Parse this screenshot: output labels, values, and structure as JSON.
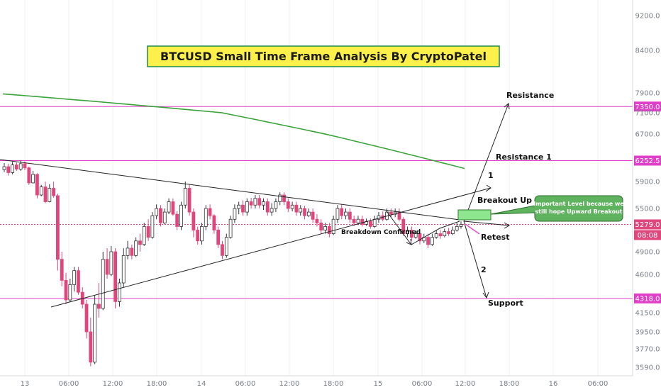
{
  "chart_data": {
    "type": "candlestick",
    "title": "BTCUSD Small Time Frame Analysis By CryptoPatel",
    "y_ticks": [
      9200.0,
      8400.0,
      7900.0,
      7350.0,
      7100.0,
      6700.0,
      6252.5,
      5900.0,
      5500.0,
      5279.0,
      4900.0,
      4600.0,
      4318.0,
      4150.0,
      3950.0,
      3770.0,
      3590.0
    ],
    "x_ticks": [
      "13",
      "06:00",
      "12:00",
      "18:00",
      "14",
      "06:00",
      "12:00",
      "18:00",
      "15",
      "06:00",
      "12:00",
      "18:00",
      "16",
      "06:00"
    ],
    "ylim": [
      3500,
      9600
    ],
    "levels": [
      {
        "label": "7350.0",
        "value": 7350.0
      },
      {
        "label": "6252.5",
        "value": 6252.5
      },
      {
        "label": "4318.0",
        "value": 4318.0
      }
    ],
    "current_price": {
      "label": "5279.0",
      "value": 5279.0
    },
    "countdown": "08:08",
    "moving_average": {
      "start": 7860,
      "end": 6120
    },
    "annotations": {
      "resistance": "Resistance",
      "resistance1": "Resistance 1",
      "breakout_up": "Breakout Up",
      "path1": "1",
      "path2": "2",
      "retest": "Retest",
      "support": "Support",
      "breakdown": "Breakdown Confirmed",
      "callout_line1": "Important Level because we",
      "callout_line2": "still hope Upward Breakout"
    },
    "candles": [
      [
        6100,
        6150,
        6060,
        6210
      ],
      [
        6150,
        6050,
        6000,
        6200
      ],
      [
        6050,
        6180,
        6020,
        6230
      ],
      [
        6180,
        6110,
        6080,
        6220
      ],
      [
        6110,
        6200,
        6080,
        6250
      ],
      [
        6200,
        6130,
        6090,
        6240
      ],
      [
        6130,
        5880,
        5850,
        6150
      ],
      [
        5880,
        6020,
        5870,
        6080
      ],
      [
        6020,
        5700,
        5650,
        6040
      ],
      [
        5700,
        5820,
        5680,
        5850
      ],
      [
        5820,
        5600,
        5580,
        5900
      ],
      [
        5600,
        5800,
        5590,
        5860
      ],
      [
        5800,
        5690,
        5660,
        5900
      ],
      [
        5690,
        4800,
        4650,
        5720
      ],
      [
        4800,
        4530,
        4460,
        4900
      ],
      [
        4530,
        4300,
        4250,
        4620
      ],
      [
        4300,
        4480,
        4280,
        4550
      ],
      [
        4480,
        4650,
        4400,
        4700
      ],
      [
        4650,
        4390,
        4360,
        4700
      ],
      [
        4390,
        4250,
        4200,
        4450
      ],
      [
        4250,
        3950,
        3880,
        4300
      ],
      [
        3950,
        3640,
        3600,
        4100
      ],
      [
        3640,
        4250,
        3620,
        4350
      ],
      [
        4250,
        4200,
        4100,
        4500
      ],
      [
        4200,
        4800,
        4180,
        4900
      ],
      [
        4800,
        4600,
        4550,
        4950
      ],
      [
        4600,
        4900,
        4580,
        4980
      ],
      [
        4900,
        4280,
        4200,
        4950
      ],
      [
        4280,
        4500,
        4220,
        4550
      ],
      [
        4500,
        4850,
        4450,
        4950
      ],
      [
        4850,
        4950,
        4800,
        5050
      ],
      [
        4950,
        4850,
        4800,
        5000
      ],
      [
        4850,
        5050,
        4830,
        5100
      ],
      [
        5050,
        5000,
        4900,
        5150
      ],
      [
        5000,
        5250,
        4980,
        5300
      ],
      [
        5250,
        5100,
        5050,
        5350
      ],
      [
        5100,
        5400,
        5080,
        5450
      ],
      [
        5400,
        5500,
        5350,
        5560
      ],
      [
        5500,
        5300,
        5250,
        5550
      ],
      [
        5300,
        5450,
        5280,
        5500
      ],
      [
        5450,
        5600,
        5420,
        5650
      ],
      [
        5600,
        5420,
        5400,
        5650
      ],
      [
        5420,
        5250,
        5200,
        5460
      ],
      [
        5250,
        5550,
        5200,
        5600
      ],
      [
        5550,
        5800,
        5500,
        5900
      ],
      [
        5800,
        5450,
        5400,
        5850
      ],
      [
        5450,
        5200,
        5100,
        5500
      ],
      [
        5200,
        5050,
        5000,
        5250
      ],
      [
        5050,
        5250,
        5000,
        5300
      ],
      [
        5250,
        5500,
        5200,
        5550
      ],
      [
        5500,
        5400,
        5350,
        5560
      ],
      [
        5400,
        5200,
        5150,
        5420
      ],
      [
        5200,
        5000,
        4950,
        5250
      ],
      [
        5000,
        4850,
        4800,
        5050
      ],
      [
        4850,
        5100,
        4820,
        5150
      ],
      [
        5100,
        5350,
        5080,
        5400
      ],
      [
        5350,
        5500,
        5300,
        5560
      ],
      [
        5500,
        5550,
        5420,
        5600
      ],
      [
        5550,
        5450,
        5400,
        5620
      ],
      [
        5450,
        5600,
        5400,
        5650
      ],
      [
        5600,
        5550,
        5500,
        5660
      ],
      [
        5550,
        5650,
        5500,
        5700
      ],
      [
        5650,
        5550,
        5500,
        5700
      ],
      [
        5550,
        5600,
        5480,
        5650
      ],
      [
        5600,
        5450,
        5400,
        5650
      ],
      [
        5450,
        5500,
        5400,
        5580
      ],
      [
        5500,
        5600,
        5450,
        5650
      ],
      [
        5600,
        5700,
        5550,
        5740
      ],
      [
        5700,
        5600,
        5550,
        5740
      ],
      [
        5600,
        5500,
        5450,
        5650
      ],
      [
        5500,
        5550,
        5460,
        5600
      ],
      [
        5550,
        5450,
        5400,
        5600
      ],
      [
        5450,
        5500,
        5400,
        5550
      ],
      [
        5500,
        5400,
        5350,
        5540
      ],
      [
        5400,
        5450,
        5380,
        5500
      ],
      [
        5450,
        5350,
        5300,
        5500
      ],
      [
        5350,
        5300,
        5250,
        5420
      ],
      [
        5300,
        5200,
        5150,
        5350
      ],
      [
        5200,
        5250,
        5150,
        5300
      ],
      [
        5250,
        5150,
        5100,
        5300
      ],
      [
        5150,
        5350,
        5130,
        5400
      ],
      [
        5350,
        5500,
        5300,
        5550
      ],
      [
        5500,
        5400,
        5350,
        5560
      ],
      [
        5400,
        5450,
        5350,
        5500
      ],
      [
        5450,
        5350,
        5300,
        5500
      ],
      [
        5350,
        5300,
        5260,
        5400
      ],
      [
        5300,
        5350,
        5270,
        5400
      ],
      [
        5350,
        5280,
        5250,
        5400
      ],
      [
        5280,
        5320,
        5260,
        5360
      ],
      [
        5320,
        5250,
        5220,
        5360
      ],
      [
        5250,
        5350,
        5230,
        5400
      ],
      [
        5350,
        5400,
        5300,
        5450
      ],
      [
        5400,
        5350,
        5320,
        5460
      ],
      [
        5350,
        5450,
        5330,
        5500
      ],
      [
        5450,
        5420,
        5380,
        5500
      ],
      [
        5420,
        5450,
        5380,
        5500
      ],
      [
        5450,
        5350,
        5320,
        5500
      ],
      [
        5350,
        5150,
        5120,
        5380
      ],
      [
        5150,
        5200,
        5100,
        5250
      ],
      [
        5200,
        5100,
        5050,
        5250
      ],
      [
        5100,
        5150,
        5080,
        5200
      ],
      [
        5150,
        5050,
        5000,
        5200
      ],
      [
        5050,
        5100,
        5020,
        5150
      ],
      [
        5100,
        5000,
        4950,
        5150
      ],
      [
        5000,
        5100,
        4980,
        5150
      ],
      [
        5100,
        5150,
        5080,
        5200
      ],
      [
        5150,
        5120,
        5080,
        5200
      ],
      [
        5120,
        5180,
        5100,
        5220
      ],
      [
        5180,
        5150,
        5120,
        5230
      ],
      [
        5150,
        5200,
        5130,
        5250
      ],
      [
        5200,
        5250,
        5180,
        5300
      ],
      [
        5250,
        5279,
        5220,
        5320
      ]
    ]
  }
}
